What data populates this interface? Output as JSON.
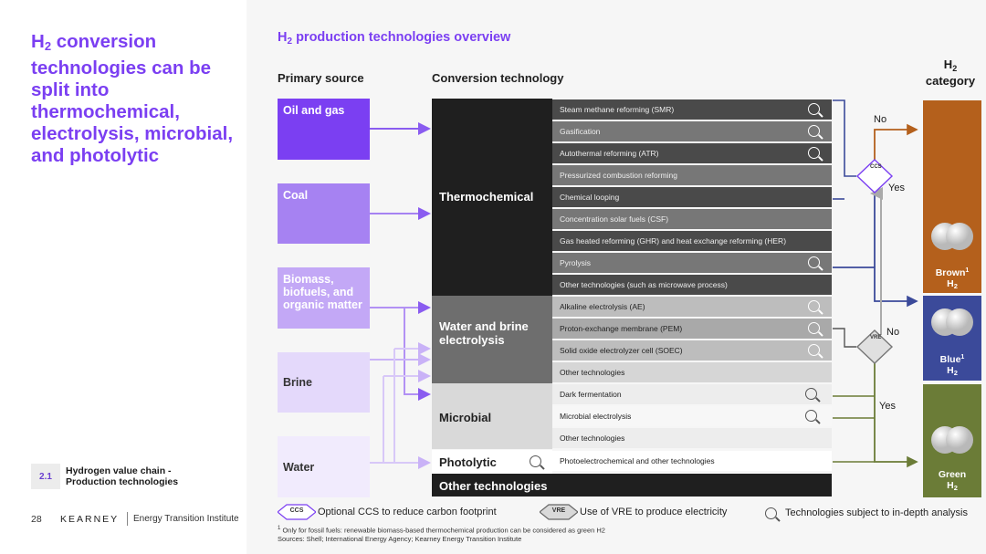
{
  "left": {
    "headline_h": "H",
    "headline_sub": "2",
    "headline_rest": " conversion technologies can be split into thermochemical, electrolysis, microbial, and photolytic",
    "section_num": "2.1",
    "section_text": "Hydrogen value chain - Production technologies",
    "page_number": "28",
    "logo": "KEARNEY",
    "institute": "Energy Transition Institute"
  },
  "diagram": {
    "title_h": "H",
    "title_sub": "2",
    "title_rest": " production technologies overview",
    "primary_source_header": "Primary source",
    "conversion_header": "Conversion technology",
    "category_header_h": "H",
    "category_header_sub": "2",
    "category_header_rest": "category",
    "sources": [
      "Oil and gas",
      "Coal",
      "Biomass, biofuels, and organic matter",
      "Brine",
      "Water"
    ],
    "groups": [
      "Thermochemical",
      "Water and brine electrolysis",
      "Microbial",
      "Photolytic",
      "Other technologies"
    ],
    "technologies": [
      {
        "label": "Steam methane reforming (SMR)",
        "analysis": true
      },
      {
        "label": "Gasification",
        "analysis": true
      },
      {
        "label": "Autothermal reforming (ATR)",
        "analysis": true
      },
      {
        "label": "Pressurized combustion reforming",
        "analysis": false
      },
      {
        "label": "Chemical looping",
        "analysis": false
      },
      {
        "label": "Concentration solar fuels (CSF)",
        "analysis": false
      },
      {
        "label": "Gas heated reforming (GHR) and heat exchange reforming (HER)",
        "analysis": false
      },
      {
        "label": "Pyrolysis",
        "analysis": true
      },
      {
        "label": "Other technologies (such as microwave process)",
        "analysis": false
      },
      {
        "label": "Alkaline electrolysis (AE)",
        "analysis": true
      },
      {
        "label": "Proton-exchange membrane (PEM)",
        "analysis": true
      },
      {
        "label": "Solid oxide electrolyzer cell (SOEC)",
        "analysis": true
      },
      {
        "label": "Other technologies",
        "analysis": false
      },
      {
        "label": "Dark fermentation",
        "analysis": true
      },
      {
        "label": "Microbial electrolysis",
        "analysis": true
      },
      {
        "label": "Other technologies",
        "analysis": false
      },
      {
        "label": "Photoelectrochemical and other technologies",
        "analysis": false
      }
    ],
    "decisions": {
      "ccs_label": "CCS",
      "vre_label": "VRE",
      "no": "No",
      "yes": "Yes"
    },
    "categories": [
      {
        "name": "Brown",
        "sup": "1",
        "h": "H",
        "sub": "2",
        "color": "#b4601c"
      },
      {
        "name": "Blue",
        "sup": "1",
        "h": "H",
        "sub": "2",
        "color": "#3b4a9a"
      },
      {
        "name": "Green",
        "sup": "",
        "h": "H",
        "sub": "2",
        "color": "#6b7c37"
      }
    ],
    "legend": {
      "ccs_tag": "CCS",
      "ccs_text": "Optional CCS to reduce carbon footprint",
      "vre_tag": "VRE",
      "vre_text": "Use of VRE to produce electricity",
      "analysis_text": "Technologies subject to in-depth analysis"
    },
    "footnote_1": "Only for fossil fuels: renewable biomass-based thermochemical production can be considered as green H2",
    "footnote_sup": "1",
    "sources_line": "Sources: Shell; International Energy Agency; Kearney Energy Transition Institute"
  },
  "colors": {
    "purple": "#7b3ff2",
    "brown": "#b4601c",
    "blue": "#3b4a9a",
    "green": "#6b7c37"
  }
}
